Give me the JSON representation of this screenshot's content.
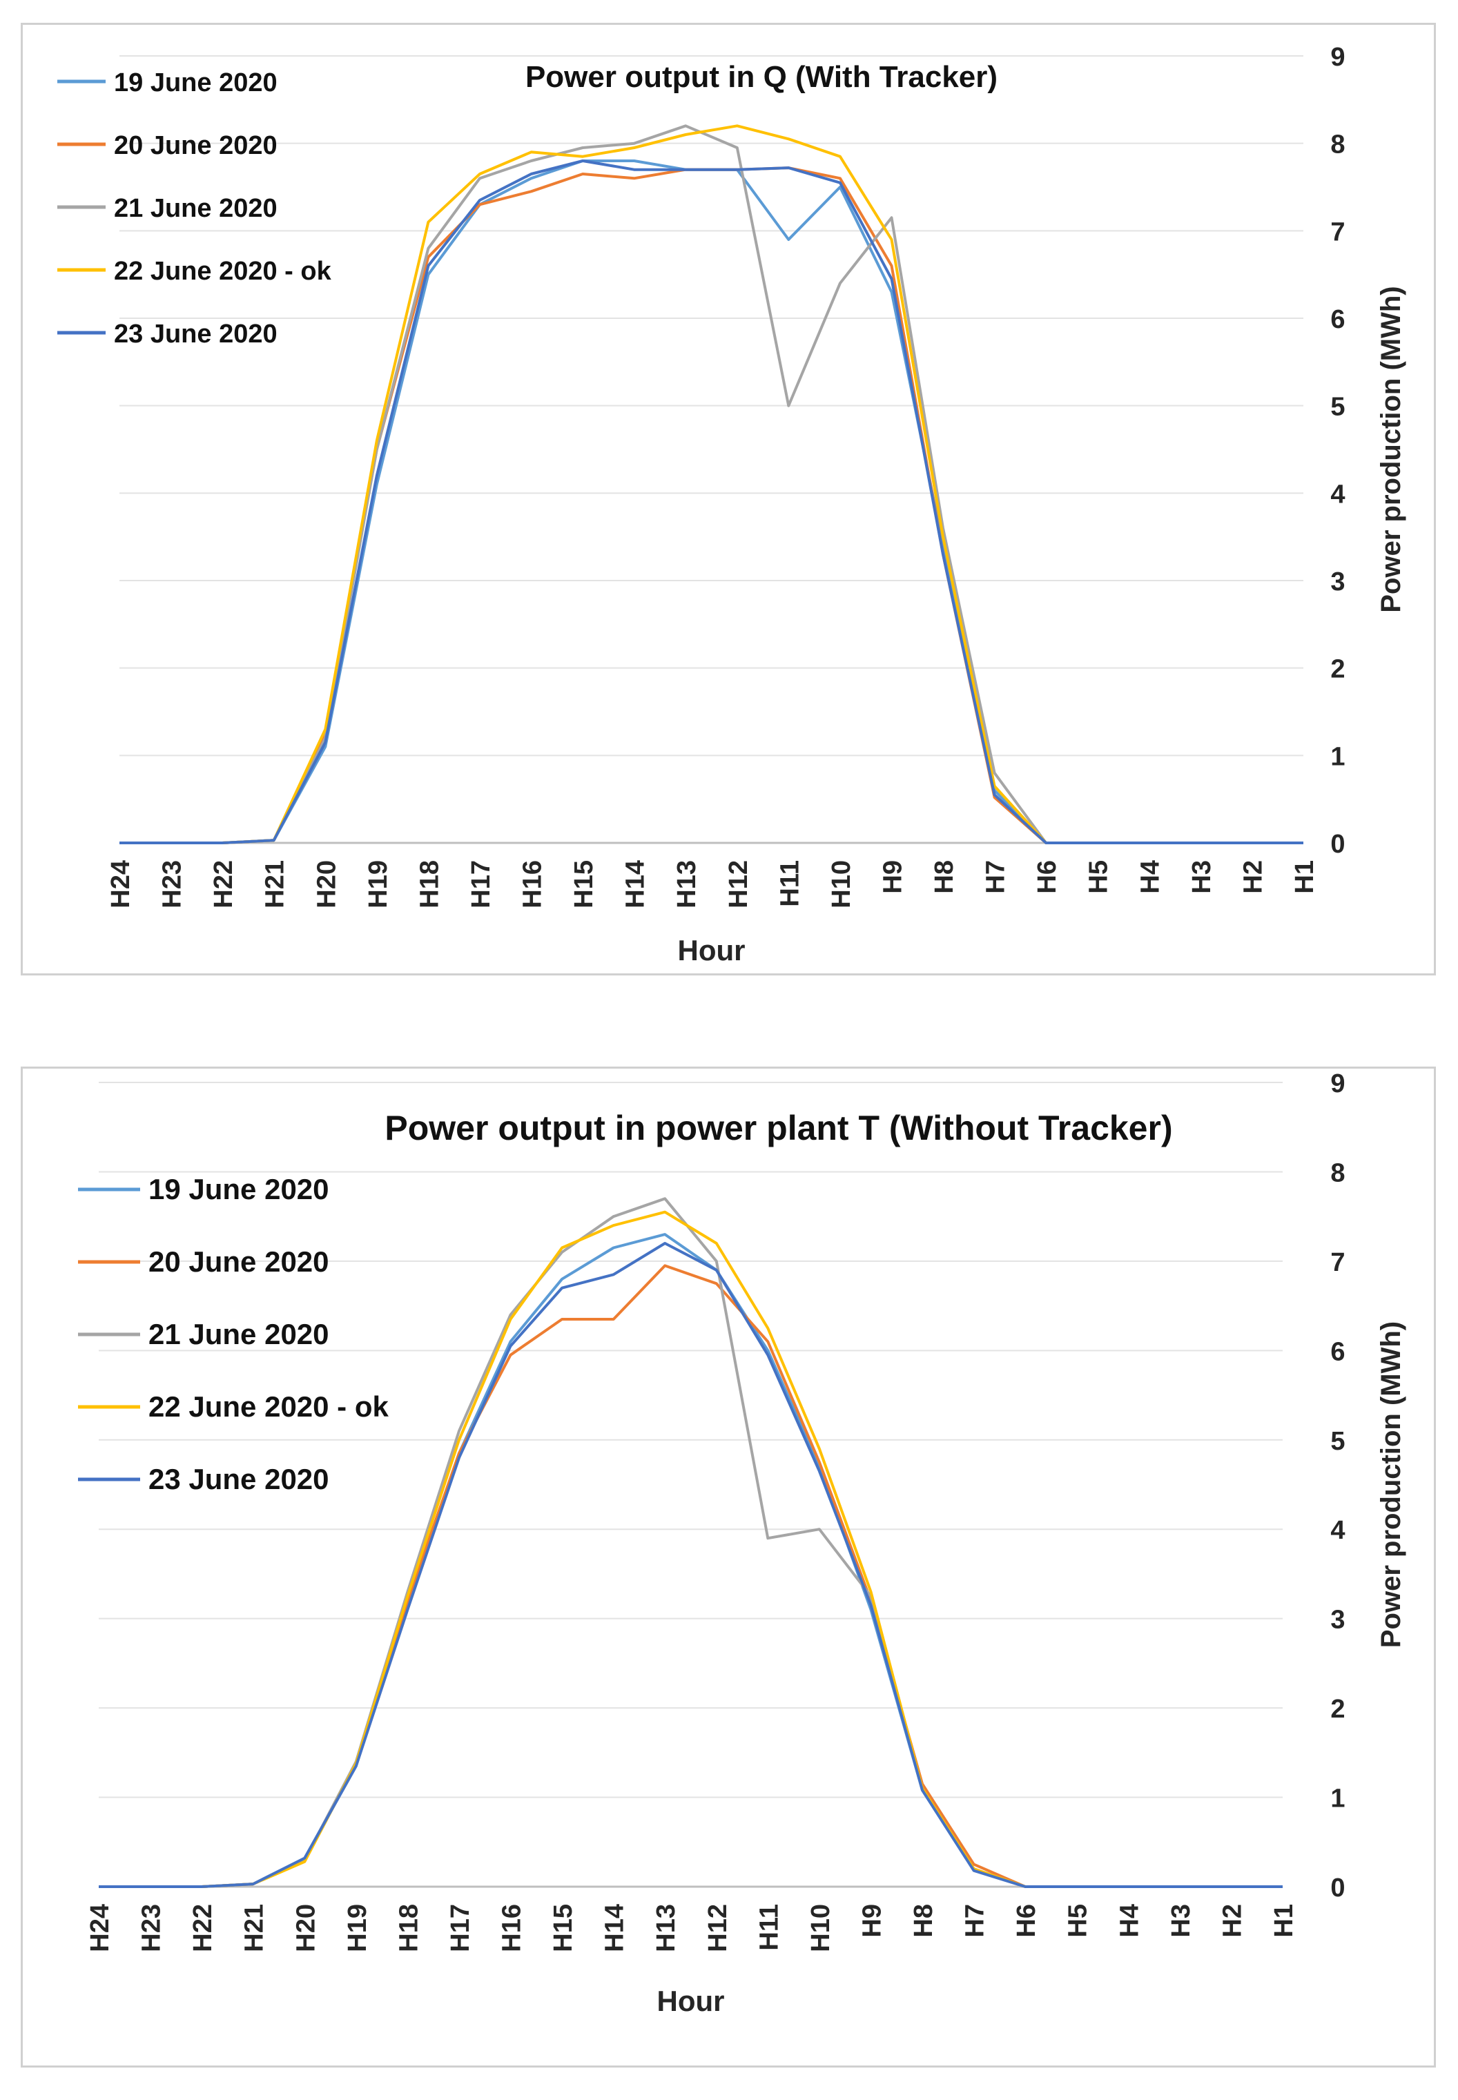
{
  "chart_data": [
    {
      "type": "line",
      "title": "Power output in Q (With Tracker)",
      "xlabel": "Hour",
      "ylabel": "Power production (MWh)",
      "ylim": [
        0,
        9
      ],
      "yticks": [
        "0",
        "1",
        "2",
        "3",
        "4",
        "5",
        "6",
        "7",
        "8",
        "9"
      ],
      "grid": true,
      "legend_position": "top-left",
      "categories": [
        "H24",
        "H23",
        "H22",
        "H21",
        "H20",
        "H19",
        "H18",
        "H17",
        "H16",
        "H15",
        "H14",
        "H13",
        "H12",
        "H11",
        "H10",
        "H9",
        "H8",
        "H7",
        "H6",
        "H5",
        "H4",
        "H3",
        "H2",
        "H1"
      ],
      "series": [
        {
          "name": "19 June 2020",
          "color": "#5b9bd5",
          "values": [
            0,
            0,
            0,
            0.03,
            1.1,
            4.1,
            6.5,
            7.3,
            7.6,
            7.8,
            7.8,
            7.7,
            7.7,
            6.9,
            7.5,
            6.3,
            3.4,
            0.6,
            0,
            0,
            0,
            0,
            0,
            0
          ]
        },
        {
          "name": "20 June 2020",
          "color": "#ed7d31",
          "values": [
            0,
            0,
            0,
            0.03,
            1.25,
            4.5,
            6.7,
            7.3,
            7.45,
            7.65,
            7.6,
            7.7,
            7.7,
            7.72,
            7.6,
            6.6,
            3.3,
            0.52,
            0,
            0,
            0,
            0,
            0,
            0
          ]
        },
        {
          "name": "21 June 2020",
          "color": "#a5a5a5",
          "values": [
            0,
            0,
            0,
            0.03,
            1.2,
            4.5,
            6.8,
            7.6,
            7.8,
            7.95,
            8.0,
            8.2,
            7.95,
            5.0,
            6.4,
            7.15,
            3.6,
            0.8,
            0,
            0,
            0,
            0,
            0,
            0
          ]
        },
        {
          "name": "22 June 2020 - ok",
          "color": "#ffc000",
          "values": [
            0,
            0,
            0,
            0.03,
            1.3,
            4.6,
            7.1,
            7.65,
            7.9,
            7.85,
            7.95,
            8.1,
            8.2,
            8.05,
            7.85,
            6.9,
            3.5,
            0.65,
            0,
            0,
            0,
            0,
            0,
            0
          ]
        },
        {
          "name": "23 June 2020",
          "color": "#4472c4",
          "values": [
            0,
            0,
            0,
            0.03,
            1.15,
            4.2,
            6.6,
            7.35,
            7.65,
            7.8,
            7.7,
            7.7,
            7.7,
            7.72,
            7.55,
            6.45,
            3.3,
            0.55,
            0,
            0,
            0,
            0,
            0,
            0
          ]
        }
      ]
    },
    {
      "type": "line",
      "title": "Power output in power plant T (Without Tracker)",
      "xlabel": "Hour",
      "ylabel": "Power production (MWh)",
      "ylim": [
        0,
        9
      ],
      "yticks": [
        "0",
        "1",
        "2",
        "3",
        "4",
        "5",
        "6",
        "7",
        "8",
        "9"
      ],
      "grid": true,
      "legend_position": "top-left",
      "categories": [
        "H24",
        "H23",
        "H22",
        "H21",
        "H20",
        "H19",
        "H18",
        "H17",
        "H16",
        "H15",
        "H14",
        "H13",
        "H12",
        "H11",
        "H10",
        "H9",
        "H8",
        "H7",
        "H6",
        "H5",
        "H4",
        "H3",
        "H2",
        "H1"
      ],
      "series": [
        {
          "name": "19 June 2020",
          "color": "#5b9bd5",
          "values": [
            0,
            0,
            0,
            0.03,
            0.32,
            1.35,
            3.15,
            4.85,
            6.1,
            6.8,
            7.15,
            7.3,
            6.9,
            6.0,
            4.7,
            3.1,
            1.08,
            0.2,
            0,
            0,
            0,
            0,
            0,
            0
          ]
        },
        {
          "name": "20 June 2020",
          "color": "#ed7d31",
          "values": [
            0,
            0,
            0,
            0.03,
            0.3,
            1.38,
            3.2,
            4.85,
            5.95,
            6.35,
            6.35,
            6.95,
            6.75,
            6.1,
            4.75,
            3.2,
            1.15,
            0.25,
            0,
            0,
            0,
            0,
            0,
            0
          ]
        },
        {
          "name": "21 June 2020",
          "color": "#a5a5a5",
          "values": [
            0,
            0,
            0,
            0.03,
            0.3,
            1.4,
            3.3,
            5.1,
            6.4,
            7.1,
            7.5,
            7.7,
            7.0,
            3.9,
            4.0,
            3.25,
            1.1,
            0.2,
            0,
            0,
            0,
            0,
            0,
            0
          ]
        },
        {
          "name": "22 June 2020 - ok",
          "color": "#ffc000",
          "values": [
            0,
            0,
            0,
            0.03,
            0.28,
            1.38,
            3.25,
            5.0,
            6.35,
            7.15,
            7.4,
            7.55,
            7.2,
            6.25,
            4.9,
            3.3,
            1.1,
            0.2,
            0,
            0,
            0,
            0,
            0,
            0
          ]
        },
        {
          "name": "23 June 2020",
          "color": "#4472c4",
          "values": [
            0,
            0,
            0,
            0.03,
            0.32,
            1.35,
            3.1,
            4.8,
            6.05,
            6.7,
            6.85,
            7.2,
            6.9,
            5.95,
            4.65,
            3.15,
            1.08,
            0.18,
            0,
            0,
            0,
            0,
            0,
            0
          ]
        }
      ]
    }
  ]
}
